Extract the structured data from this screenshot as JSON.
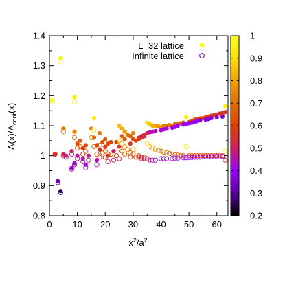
{
  "chart_data": {
    "type": "scatter",
    "xlabel": "x²/a²",
    "ylabel": "Δ(x)/Δcont(x)",
    "xlim": [
      0,
      64
    ],
    "ylim": [
      0.8,
      1.4
    ],
    "xticks": [
      "0",
      "10",
      "20",
      "30",
      "40",
      "50",
      "60"
    ],
    "yticks": [
      "0.8",
      "0.9",
      "1",
      "1.1",
      "1.2",
      "1.3",
      "1.4"
    ],
    "grid": false,
    "legend_position": "top-right",
    "colorbar": {
      "range": [
        0.2,
        1
      ],
      "ticks": [
        "0.2",
        "0.3",
        "0.4",
        "0.5",
        "0.6",
        "0.7",
        "0.8",
        "0.9",
        "1"
      ],
      "palette": [
        "#000000",
        "#5a00a0",
        "#9a00ff",
        "#d02060",
        "#e04000",
        "#e07000",
        "#f0a000",
        "#ffe000",
        "#ffff20"
      ]
    },
    "series": [
      {
        "name": "L=32 lattice",
        "marker": "filled-circle",
        "legend_color": "#ffff00",
        "points": [
          [
            1,
            1.185,
            0.97
          ],
          [
            2,
            1.005,
            0.56
          ],
          [
            3,
            0.915,
            0.34
          ],
          [
            4,
            1.325,
            0.97
          ],
          [
            4,
            0.882,
            0.25
          ],
          [
            5,
            1.09,
            0.72
          ],
          [
            5,
            1.005,
            0.52
          ],
          [
            6,
            1.0,
            0.48
          ],
          [
            8,
            0.96,
            0.42
          ],
          [
            8,
            1.015,
            0.5
          ],
          [
            9,
            1.195,
            0.94
          ],
          [
            9,
            1.08,
            0.74
          ],
          [
            9,
            0.975,
            0.43
          ],
          [
            10,
            1.0,
            0.46
          ],
          [
            10,
            1.04,
            0.64
          ],
          [
            11,
            1.05,
            0.66
          ],
          [
            12,
            0.99,
            0.45
          ],
          [
            12,
            1.025,
            0.58
          ],
          [
            13,
            1.035,
            0.62
          ],
          [
            13,
            0.97,
            0.42
          ],
          [
            14,
            1.0,
            0.48
          ],
          [
            15,
            1.09,
            0.75
          ],
          [
            16,
            1.125,
            0.93
          ],
          [
            16,
            1.06,
            0.67
          ],
          [
            17,
            1.035,
            0.6
          ],
          [
            17,
            0.985,
            0.45
          ],
          [
            18,
            1.075,
            0.73
          ],
          [
            18,
            1.02,
            0.55
          ],
          [
            19,
            1.045,
            0.63
          ],
          [
            20,
            1.055,
            0.65
          ],
          [
            20,
            1.03,
            0.58
          ],
          [
            21,
            1.04,
            0.62
          ],
          [
            21,
            1.0,
            0.5
          ],
          [
            22,
            1.045,
            0.61
          ],
          [
            23,
            1.015,
            0.5
          ],
          [
            24,
            1.045,
            0.6
          ],
          [
            25,
            1.1,
            0.85
          ],
          [
            25,
            1.03,
            0.55
          ],
          [
            26,
            1.09,
            0.82
          ],
          [
            26,
            1.065,
            0.66
          ],
          [
            27,
            1.08,
            0.78
          ],
          [
            27,
            1.055,
            0.64
          ],
          [
            28,
            1.07,
            0.72
          ],
          [
            29,
            1.065,
            0.68
          ],
          [
            29,
            1.04,
            0.58
          ],
          [
            30,
            1.055,
            0.64
          ],
          [
            30,
            1.075,
            0.74
          ],
          [
            31,
            1.05,
            0.6
          ],
          [
            32,
            1.055,
            0.58
          ],
          [
            32,
            1.06,
            0.6
          ],
          [
            33,
            1.06,
            0.56
          ],
          [
            33,
            1.065,
            0.5
          ],
          [
            34,
            1.065,
            0.52
          ],
          [
            34,
            1.07,
            0.55
          ],
          [
            35,
            1.11,
            0.9
          ],
          [
            35,
            1.075,
            0.5
          ],
          [
            36,
            1.105,
            0.86
          ],
          [
            36,
            1.078,
            0.45
          ],
          [
            37,
            1.1,
            0.82
          ],
          [
            37,
            1.08,
            0.46
          ],
          [
            38,
            1.1,
            0.8
          ],
          [
            38,
            1.082,
            0.44
          ],
          [
            39,
            1.098,
            0.78
          ],
          [
            40,
            1.095,
            0.76
          ],
          [
            40,
            1.085,
            0.43
          ],
          [
            41,
            1.1,
            0.74
          ],
          [
            41,
            1.088,
            0.42
          ],
          [
            42,
            1.1,
            0.72
          ],
          [
            42,
            1.09,
            0.42
          ],
          [
            43,
            1.102,
            0.7
          ],
          [
            44,
            1.1,
            0.68
          ],
          [
            44,
            1.093,
            0.41
          ],
          [
            45,
            1.105,
            0.68
          ],
          [
            45,
            1.096,
            0.41
          ],
          [
            46,
            1.105,
            0.66
          ],
          [
            46,
            1.1,
            0.4
          ],
          [
            47,
            1.108,
            0.66
          ],
          [
            48,
            1.11,
            0.64
          ],
          [
            48,
            1.104,
            0.4
          ],
          [
            49,
            1.128,
            0.92
          ],
          [
            49,
            1.105,
            0.4
          ],
          [
            50,
            1.112,
            0.63
          ],
          [
            50,
            1.108,
            0.39
          ],
          [
            51,
            1.115,
            0.62
          ],
          [
            51,
            1.11,
            0.39
          ],
          [
            52,
            1.12,
            0.62
          ],
          [
            52,
            1.112,
            0.39
          ],
          [
            53,
            1.122,
            0.6
          ],
          [
            53,
            1.115,
            0.38
          ],
          [
            54,
            1.124,
            0.6
          ],
          [
            54,
            1.118,
            0.38
          ],
          [
            55,
            1.125,
            0.58
          ],
          [
            56,
            1.128,
            0.58
          ],
          [
            56,
            1.12,
            0.38
          ],
          [
            57,
            1.13,
            0.58
          ],
          [
            57,
            1.122,
            0.37
          ],
          [
            58,
            1.133,
            0.56
          ],
          [
            58,
            1.125,
            0.37
          ],
          [
            59,
            1.135,
            0.56
          ],
          [
            60,
            1.137,
            0.56
          ],
          [
            60,
            1.128,
            0.37
          ],
          [
            61,
            1.14,
            0.55
          ],
          [
            62,
            1.142,
            0.55
          ],
          [
            62,
            1.13,
            0.36
          ],
          [
            63,
            1.165,
            0.95
          ],
          [
            63,
            1.145,
            0.55
          ]
        ]
      },
      {
        "name": "Infinite lattice",
        "marker": "open-circle",
        "legend_color": "#6a0aa8",
        "points": [
          [
            1,
            1.18,
            0.97
          ],
          [
            2,
            1.005,
            0.56
          ],
          [
            3,
            0.91,
            0.34
          ],
          [
            4,
            1.315,
            0.97
          ],
          [
            4,
            0.877,
            0.25
          ],
          [
            5,
            1.08,
            0.72
          ],
          [
            5,
            1.0,
            0.52
          ],
          [
            6,
            0.995,
            0.48
          ],
          [
            8,
            0.955,
            0.42
          ],
          [
            8,
            1.005,
            0.5
          ],
          [
            9,
            1.18,
            0.94
          ],
          [
            9,
            1.06,
            0.74
          ],
          [
            9,
            0.97,
            0.43
          ],
          [
            10,
            0.99,
            0.46
          ],
          [
            10,
            1.025,
            0.64
          ],
          [
            11,
            1.03,
            0.66
          ],
          [
            12,
            0.98,
            0.45
          ],
          [
            12,
            1.005,
            0.58
          ],
          [
            13,
            1.015,
            0.62
          ],
          [
            13,
            0.96,
            0.42
          ],
          [
            14,
            0.985,
            0.48
          ],
          [
            15,
            1.06,
            0.75
          ],
          [
            16,
            1.085,
            0.93
          ],
          [
            16,
            1.03,
            0.67
          ],
          [
            17,
            1.005,
            0.6
          ],
          [
            17,
            0.97,
            0.45
          ],
          [
            18,
            1.035,
            0.73
          ],
          [
            18,
            0.995,
            0.55
          ],
          [
            19,
            1.01,
            0.63
          ],
          [
            20,
            1.015,
            0.65
          ],
          [
            20,
            0.995,
            0.58
          ],
          [
            21,
            1.005,
            0.62
          ],
          [
            21,
            0.98,
            0.5
          ],
          [
            22,
            1.005,
            0.61
          ],
          [
            23,
            0.985,
            0.5
          ],
          [
            24,
            1.0,
            0.6
          ],
          [
            25,
            1.05,
            0.85
          ],
          [
            25,
            0.99,
            0.55
          ],
          [
            26,
            1.04,
            0.82
          ],
          [
            26,
            1.015,
            0.66
          ],
          [
            27,
            1.03,
            0.78
          ],
          [
            27,
            1.005,
            0.64
          ],
          [
            28,
            1.02,
            0.72
          ],
          [
            29,
            1.01,
            0.68
          ],
          [
            29,
            0.995,
            0.58
          ],
          [
            30,
            1.005,
            0.64
          ],
          [
            30,
            1.02,
            0.74
          ],
          [
            31,
            0.995,
            0.6
          ],
          [
            32,
            0.995,
            0.58
          ],
          [
            32,
            1.0,
            0.6
          ],
          [
            33,
            0.995,
            0.56
          ],
          [
            33,
            0.99,
            0.5
          ],
          [
            34,
            0.99,
            0.52
          ],
          [
            34,
            0.995,
            0.55
          ],
          [
            35,
            1.04,
            0.9
          ],
          [
            35,
            0.99,
            0.5
          ],
          [
            36,
            1.03,
            0.86
          ],
          [
            36,
            0.985,
            0.45
          ],
          [
            37,
            1.025,
            0.82
          ],
          [
            37,
            0.985,
            0.46
          ],
          [
            38,
            1.02,
            0.8
          ],
          [
            38,
            0.985,
            0.44
          ],
          [
            39,
            1.018,
            0.78
          ],
          [
            40,
            1.015,
            0.76
          ],
          [
            40,
            0.99,
            0.43
          ],
          [
            41,
            1.012,
            0.74
          ],
          [
            41,
            0.99,
            0.42
          ],
          [
            42,
            1.01,
            0.72
          ],
          [
            42,
            0.99,
            0.42
          ],
          [
            43,
            1.008,
            0.7
          ],
          [
            44,
            1.005,
            0.68
          ],
          [
            44,
            0.99,
            0.41
          ],
          [
            45,
            1.003,
            0.68
          ],
          [
            45,
            0.992,
            0.41
          ],
          [
            46,
            1.002,
            0.66
          ],
          [
            46,
            0.992,
            0.4
          ],
          [
            47,
            1.0,
            0.66
          ],
          [
            48,
            1.0,
            0.64
          ],
          [
            48,
            0.993,
            0.4
          ],
          [
            49,
            1.03,
            0.92
          ],
          [
            49,
            0.993,
            0.4
          ],
          [
            50,
            1.0,
            0.63
          ],
          [
            50,
            0.994,
            0.39
          ],
          [
            51,
            1.0,
            0.62
          ],
          [
            51,
            0.994,
            0.39
          ],
          [
            52,
            1.0,
            0.62
          ],
          [
            52,
            0.995,
            0.39
          ],
          [
            53,
            1.0,
            0.6
          ],
          [
            53,
            0.995,
            0.38
          ],
          [
            54,
            1.0,
            0.6
          ],
          [
            54,
            0.995,
            0.38
          ],
          [
            55,
            1.0,
            0.58
          ],
          [
            56,
            1.0,
            0.58
          ],
          [
            56,
            0.996,
            0.38
          ],
          [
            57,
            1.0,
            0.58
          ],
          [
            57,
            0.996,
            0.37
          ],
          [
            58,
            1.0,
            0.56
          ],
          [
            58,
            0.996,
            0.37
          ],
          [
            59,
            1.0,
            0.56
          ],
          [
            60,
            1.0,
            0.56
          ],
          [
            60,
            0.997,
            0.37
          ],
          [
            61,
            1.0,
            0.55
          ],
          [
            62,
            1.0,
            0.55
          ],
          [
            62,
            0.997,
            0.36
          ],
          [
            63,
            1.015,
            0.95
          ],
          [
            63,
            0.985,
            0.55
          ]
        ]
      }
    ]
  }
}
